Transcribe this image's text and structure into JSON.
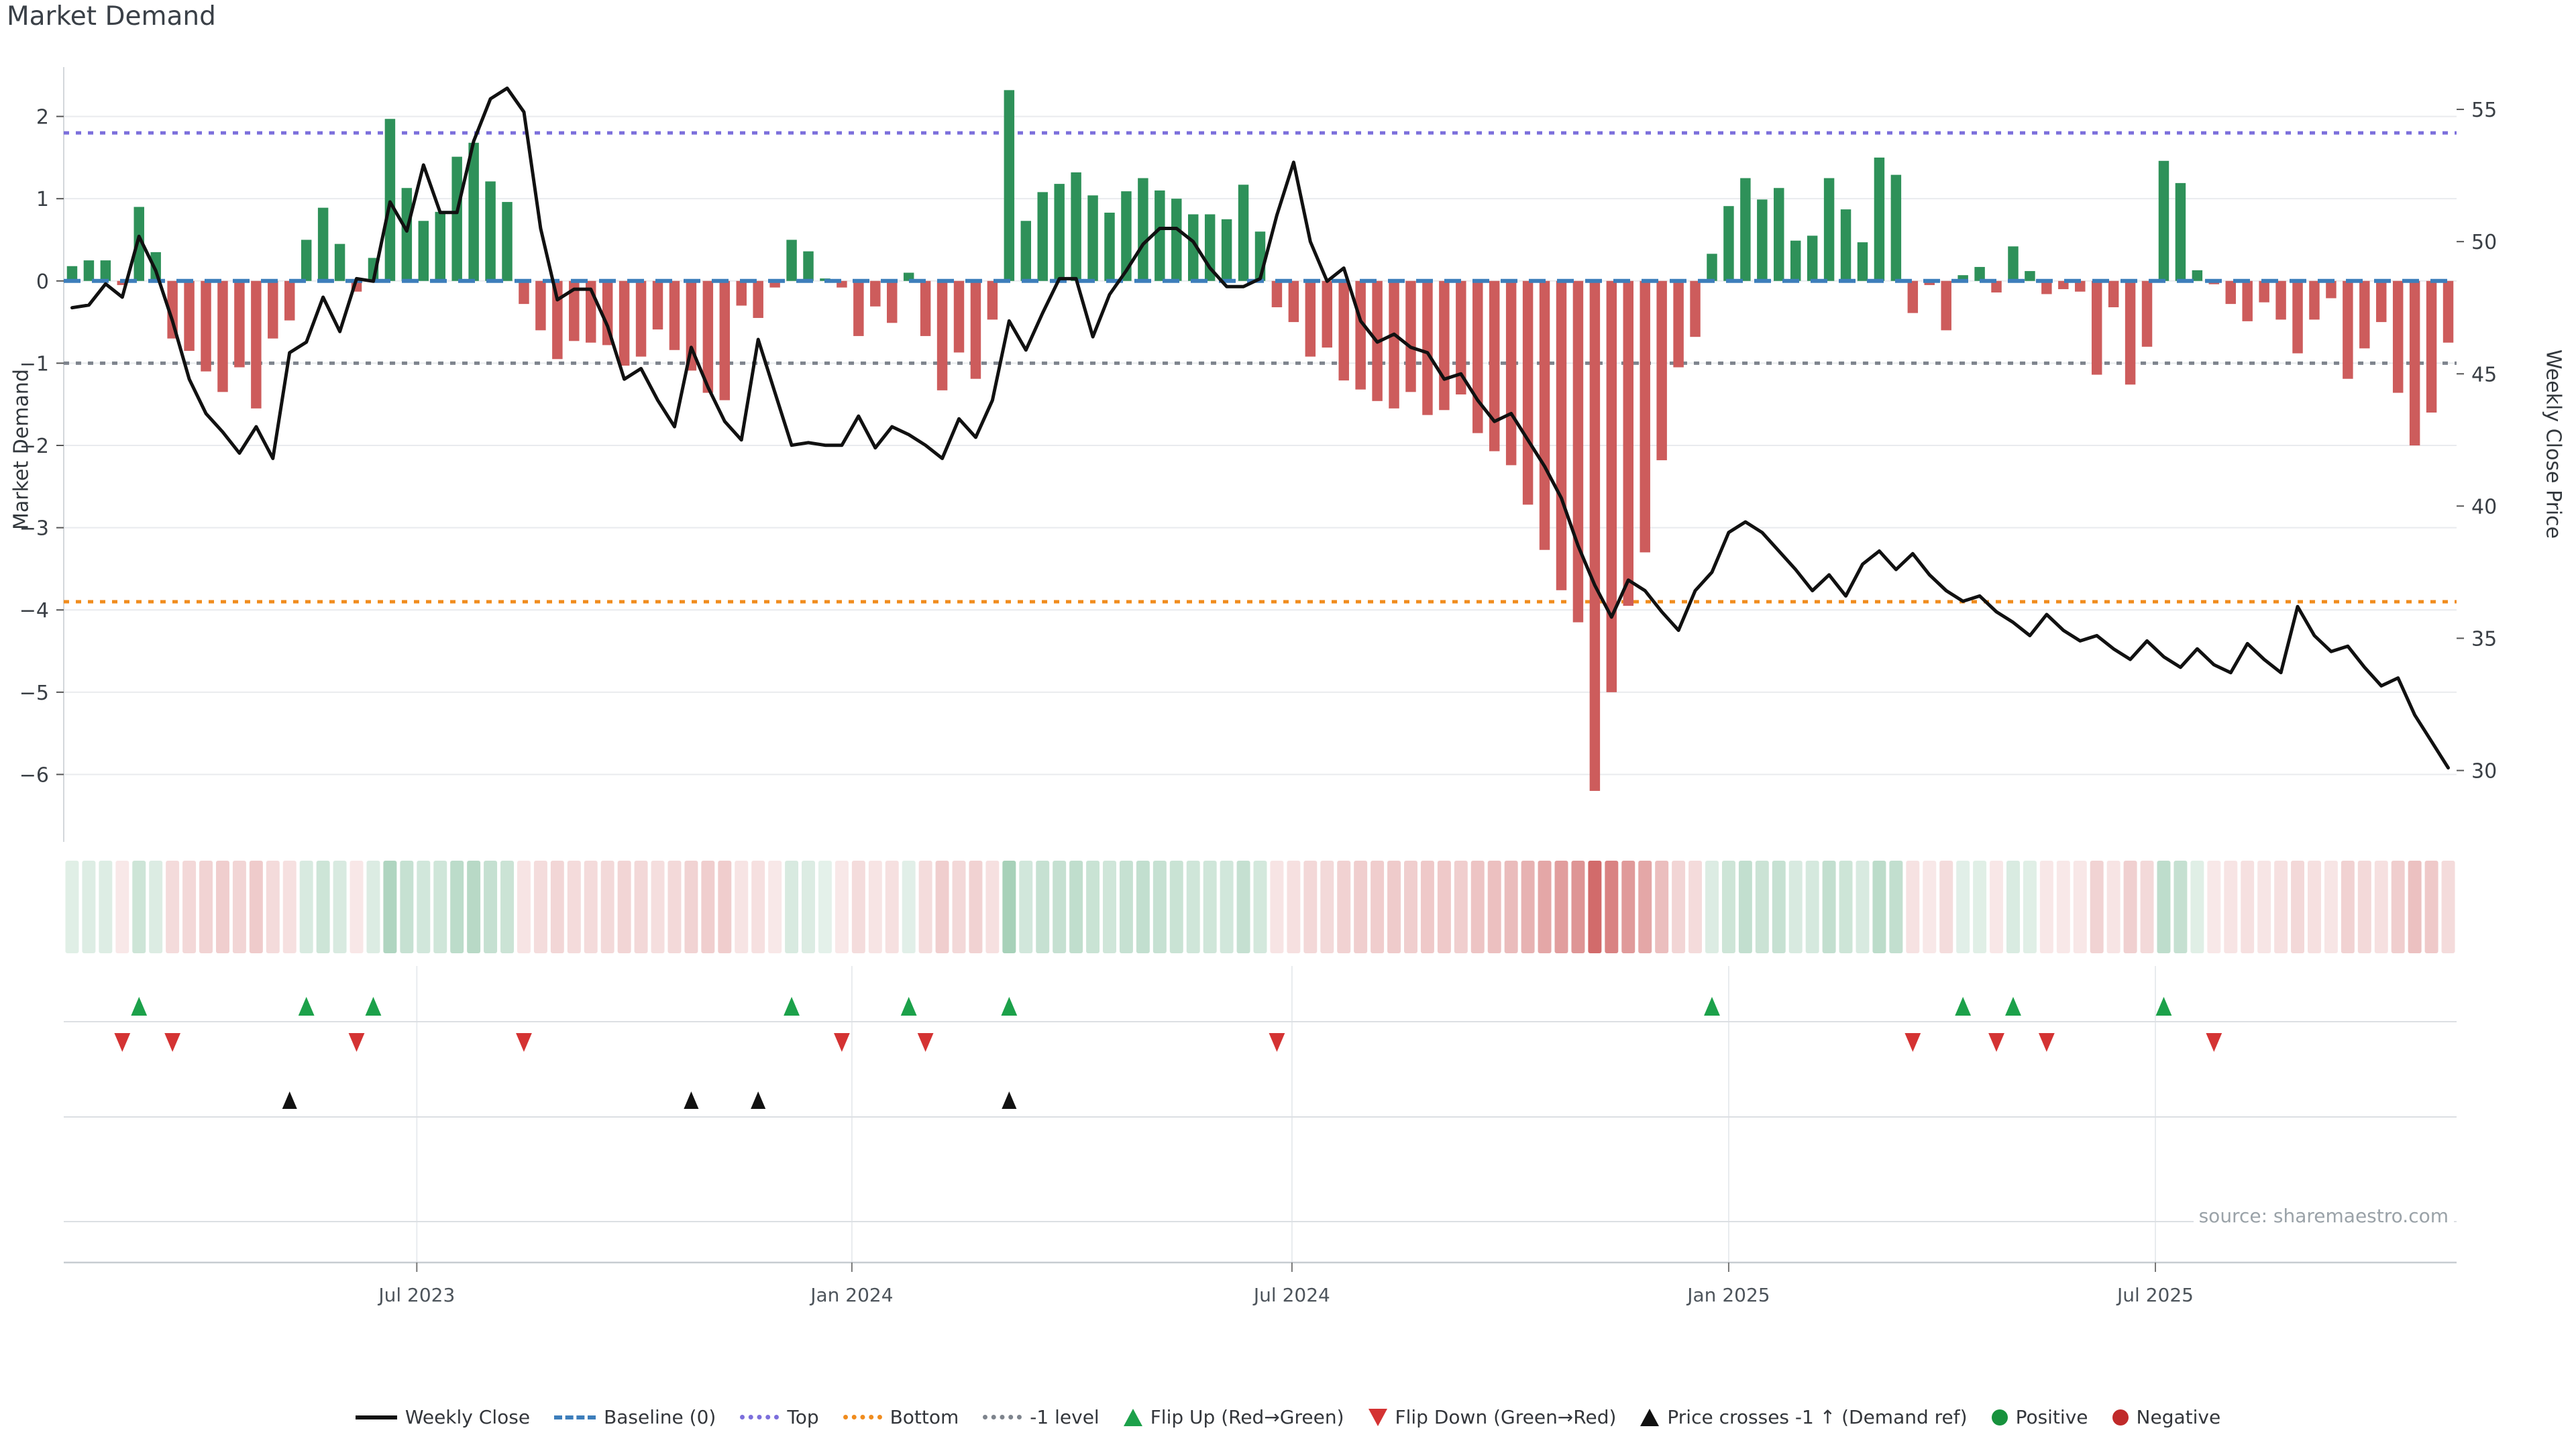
{
  "title": "Market Demand",
  "source": "source: sharemaestro.com",
  "axes": {
    "left_title": "Market Demand",
    "right_title": "Weekly Close Price",
    "left_ticks": [
      2,
      1,
      0,
      -1,
      -2,
      -3,
      -4,
      -5,
      -6
    ],
    "right_ticks": [
      55,
      50,
      45,
      40,
      35,
      30
    ],
    "x_ticks": [
      {
        "label": "Jul 2023",
        "week": 20.6
      },
      {
        "label": "Jan 2024",
        "week": 46.6
      },
      {
        "label": "Jul 2024",
        "week": 72.9
      },
      {
        "label": "Jan 2025",
        "week": 99.0
      },
      {
        "label": "Jul 2025",
        "week": 124.5
      }
    ]
  },
  "chart_data": {
    "type": "bar+line",
    "x_unit": "week",
    "n_weeks": 143,
    "left_range": [
      -6.82,
      2.6
    ],
    "right_range": [
      27.3,
      56.6
    ],
    "reference_lines": {
      "baseline": 0,
      "top": 1.8,
      "bottom": -3.9,
      "minus1": -1
    },
    "series": [
      {
        "name": "Market Demand",
        "type": "bar",
        "axis": "left",
        "values": [
          0.18,
          0.25,
          0.25,
          -0.05,
          0.9,
          0.35,
          -0.7,
          -0.85,
          -1.1,
          -1.35,
          -1.05,
          -1.55,
          -0.7,
          -0.48,
          0.5,
          0.89,
          0.45,
          -0.13,
          0.28,
          1.97,
          1.13,
          0.73,
          0.84,
          1.51,
          1.68,
          1.21,
          0.96,
          -0.28,
          -0.6,
          -0.95,
          -0.73,
          -0.75,
          -0.78,
          -1.03,
          -0.92,
          -0.59,
          -0.84,
          -1.09,
          -1.36,
          -1.45,
          -0.3,
          -0.45,
          -0.08,
          0.5,
          0.36,
          0.03,
          -0.08,
          -0.67,
          -0.31,
          -0.51,
          0.1,
          -0.67,
          -1.33,
          -0.87,
          -1.19,
          -0.47,
          2.32,
          0.73,
          1.08,
          1.18,
          1.32,
          1.04,
          0.83,
          1.09,
          1.25,
          1.1,
          1.0,
          0.81,
          0.81,
          0.75,
          1.17,
          0.6,
          -0.32,
          -0.5,
          -0.92,
          -0.81,
          -1.21,
          -1.32,
          -1.46,
          -1.55,
          -1.35,
          -1.63,
          -1.57,
          -1.38,
          -1.85,
          -2.07,
          -2.24,
          -2.72,
          -3.27,
          -3.76,
          -4.15,
          -6.2,
          -5.0,
          -3.95,
          -3.3,
          -2.18,
          -1.05,
          -0.68,
          0.33,
          0.91,
          1.25,
          0.99,
          1.13,
          0.49,
          0.55,
          1.25,
          0.87,
          0.47,
          1.5,
          1.29,
          -0.39,
          -0.05,
          -0.6,
          0.07,
          0.17,
          -0.14,
          0.42,
          0.12,
          -0.16,
          -0.1,
          -0.13,
          -1.14,
          -0.32,
          -1.26,
          -0.8,
          1.46,
          1.19,
          0.13,
          -0.04,
          -0.28,
          -0.49,
          -0.26,
          -0.47,
          -0.88,
          -0.47,
          -0.21,
          -1.19,
          -0.82,
          -0.5,
          -1.36,
          -2.0,
          -1.6,
          -0.75
        ]
      },
      {
        "name": "Weekly Close",
        "type": "line",
        "axis": "right",
        "values": [
          47.5,
          47.6,
          48.4,
          47.9,
          50.2,
          48.9,
          47.0,
          44.8,
          43.5,
          42.8,
          42.0,
          43.0,
          41.8,
          45.8,
          46.2,
          47.9,
          46.6,
          48.6,
          48.5,
          51.5,
          50.4,
          52.9,
          51.1,
          51.1,
          53.8,
          55.4,
          55.8,
          54.9,
          50.5,
          47.8,
          48.2,
          48.2,
          46.8,
          44.8,
          45.2,
          44.0,
          43.0,
          46.0,
          44.5,
          43.2,
          42.5,
          46.3,
          44.3,
          42.3,
          42.4,
          42.3,
          42.3,
          43.4,
          42.2,
          43.0,
          42.7,
          42.3,
          41.8,
          43.3,
          42.6,
          44.0,
          47.0,
          45.9,
          47.3,
          48.6,
          48.6,
          46.4,
          48.0,
          48.9,
          49.9,
          50.5,
          50.5,
          50.0,
          49.0,
          48.3,
          48.3,
          48.6,
          51.0,
          53.0,
          50.0,
          48.5,
          49.0,
          47.0,
          46.2,
          46.5,
          46.0,
          45.8,
          44.8,
          45.0,
          44.0,
          43.2,
          43.5,
          42.5,
          41.5,
          40.3,
          38.5,
          37.0,
          35.8,
          37.2,
          36.8,
          36.0,
          35.3,
          36.8,
          37.5,
          39.0,
          39.4,
          39.0,
          38.3,
          37.6,
          36.8,
          37.4,
          36.6,
          37.8,
          38.3,
          37.6,
          38.2,
          37.4,
          36.8,
          36.4,
          36.6,
          36.0,
          35.6,
          35.1,
          35.9,
          35.3,
          34.9,
          35.1,
          34.6,
          34.2,
          34.9,
          34.3,
          33.9,
          34.6,
          34.0,
          33.7,
          34.8,
          34.2,
          33.7,
          36.2,
          35.1,
          34.5,
          34.7,
          33.9,
          33.2,
          33.5,
          32.1,
          31.1,
          30.1
        ]
      }
    ],
    "markers": {
      "flip_up_weeks": [
        4,
        14,
        18,
        43,
        50,
        56,
        98,
        113,
        116,
        125
      ],
      "flip_down_weeks": [
        3,
        6,
        17,
        27,
        46,
        51,
        72,
        110,
        115,
        118,
        128
      ],
      "price_cross_weeks": [
        13,
        37,
        41,
        56
      ]
    },
    "heat_strip": "same weekly values, green/red shaded by magnitude"
  },
  "legend": {
    "items": [
      {
        "label": "Weekly Close",
        "swatch": "line",
        "color_key": "price_line"
      },
      {
        "label": "Baseline (0)",
        "swatch": "dash",
        "color_key": "baseline"
      },
      {
        "label": "Top",
        "swatch": "dot-line",
        "color_key": "top_line"
      },
      {
        "label": "Bottom",
        "swatch": "dot-line",
        "color_key": "bottom_line"
      },
      {
        "label": "-1 level",
        "swatch": "dot-line",
        "color_key": "minus1_line"
      },
      {
        "label": "Flip Up (Red→Green)",
        "swatch": "tri-up",
        "color_key": "flip_up"
      },
      {
        "label": "Flip Down (Green→Red)",
        "swatch": "tri-down",
        "color_key": "flip_down"
      },
      {
        "label": "Price crosses -1 ↑ (Demand ref)",
        "swatch": "tri-up",
        "color_key": "price_cross"
      },
      {
        "label": "Positive",
        "swatch": "circle",
        "color_key": "positive_dot"
      },
      {
        "label": "Negative",
        "swatch": "circle",
        "color_key": "negative_dot"
      }
    ]
  },
  "colors": {
    "positive_bar": "#2E9159",
    "negative_bar": "#CD5C5C",
    "price_line": "#111111",
    "baseline": "#3D7EBB",
    "top_line": "#7C6FDC",
    "bottom_line": "#F08C1E",
    "minus1_line": "#7E848D",
    "flip_up": "#1CA14A",
    "flip_down": "#D43333",
    "price_cross": "#111111",
    "positive_dot": "#17923D",
    "negative_dot": "#C02A2A",
    "grid": "#e9ebee",
    "spine": "#c7ccd1",
    "tick_text": "#3a3f45",
    "date_text": "#4d545b"
  }
}
